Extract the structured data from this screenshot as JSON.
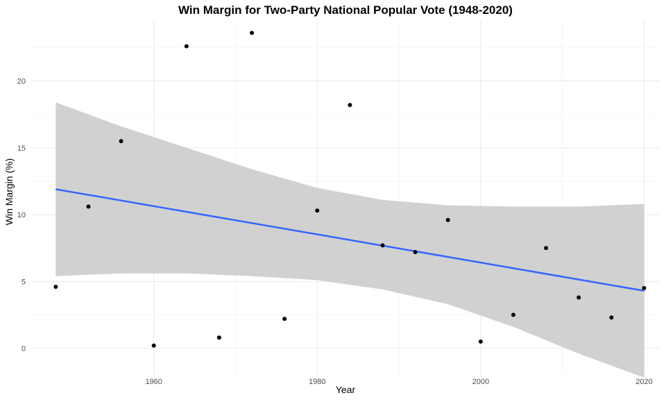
{
  "chart_data": {
    "type": "scatter",
    "title": "Win Margin for Two-Party National Popular Vote (1948-2020)",
    "xlabel": "Year",
    "ylabel": "Win Margin (%)",
    "xlim": [
      1945,
      2022
    ],
    "ylim": [
      -2,
      24.5
    ],
    "x_ticks": [
      1960,
      1980,
      2000,
      2020
    ],
    "x_tick_labels": [
      "1960",
      "1980",
      "2000",
      "2020"
    ],
    "y_ticks": [
      0,
      5,
      10,
      15,
      20
    ],
    "y_tick_labels": [
      "0",
      "5",
      "10",
      "15",
      "20"
    ],
    "grid": true,
    "legend": "none",
    "series": [
      {
        "type": "scatter",
        "x": [
          1948,
          1952,
          1956,
          1960,
          1964,
          1968,
          1972,
          1976,
          1980,
          1984,
          1988,
          1992,
          1996,
          2000,
          2004,
          2008,
          2012,
          2016,
          2020
        ],
        "y": [
          4.6,
          10.6,
          15.5,
          0.2,
          22.6,
          0.8,
          23.6,
          2.2,
          10.3,
          18.2,
          7.7,
          7.2,
          9.6,
          0.5,
          2.5,
          7.5,
          3.8,
          2.3,
          4.5
        ],
        "color": "#000000"
      },
      {
        "type": "line",
        "x": [
          1948,
          2020
        ],
        "y": [
          11.9,
          4.3
        ],
        "color": "#3366FF"
      }
    ],
    "confidence_band": {
      "x": [
        1948,
        1956,
        1964,
        1972,
        1980,
        1988,
        1996,
        2004,
        2012,
        2020
      ],
      "lower": [
        5.4,
        5.6,
        5.6,
        5.4,
        5.1,
        4.4,
        3.3,
        1.6,
        -0.4,
        -2.2
      ],
      "upper": [
        18.4,
        16.6,
        15.0,
        13.4,
        12.0,
        11.1,
        10.7,
        10.6,
        10.6,
        10.8
      ],
      "color": "#cccccc"
    }
  }
}
